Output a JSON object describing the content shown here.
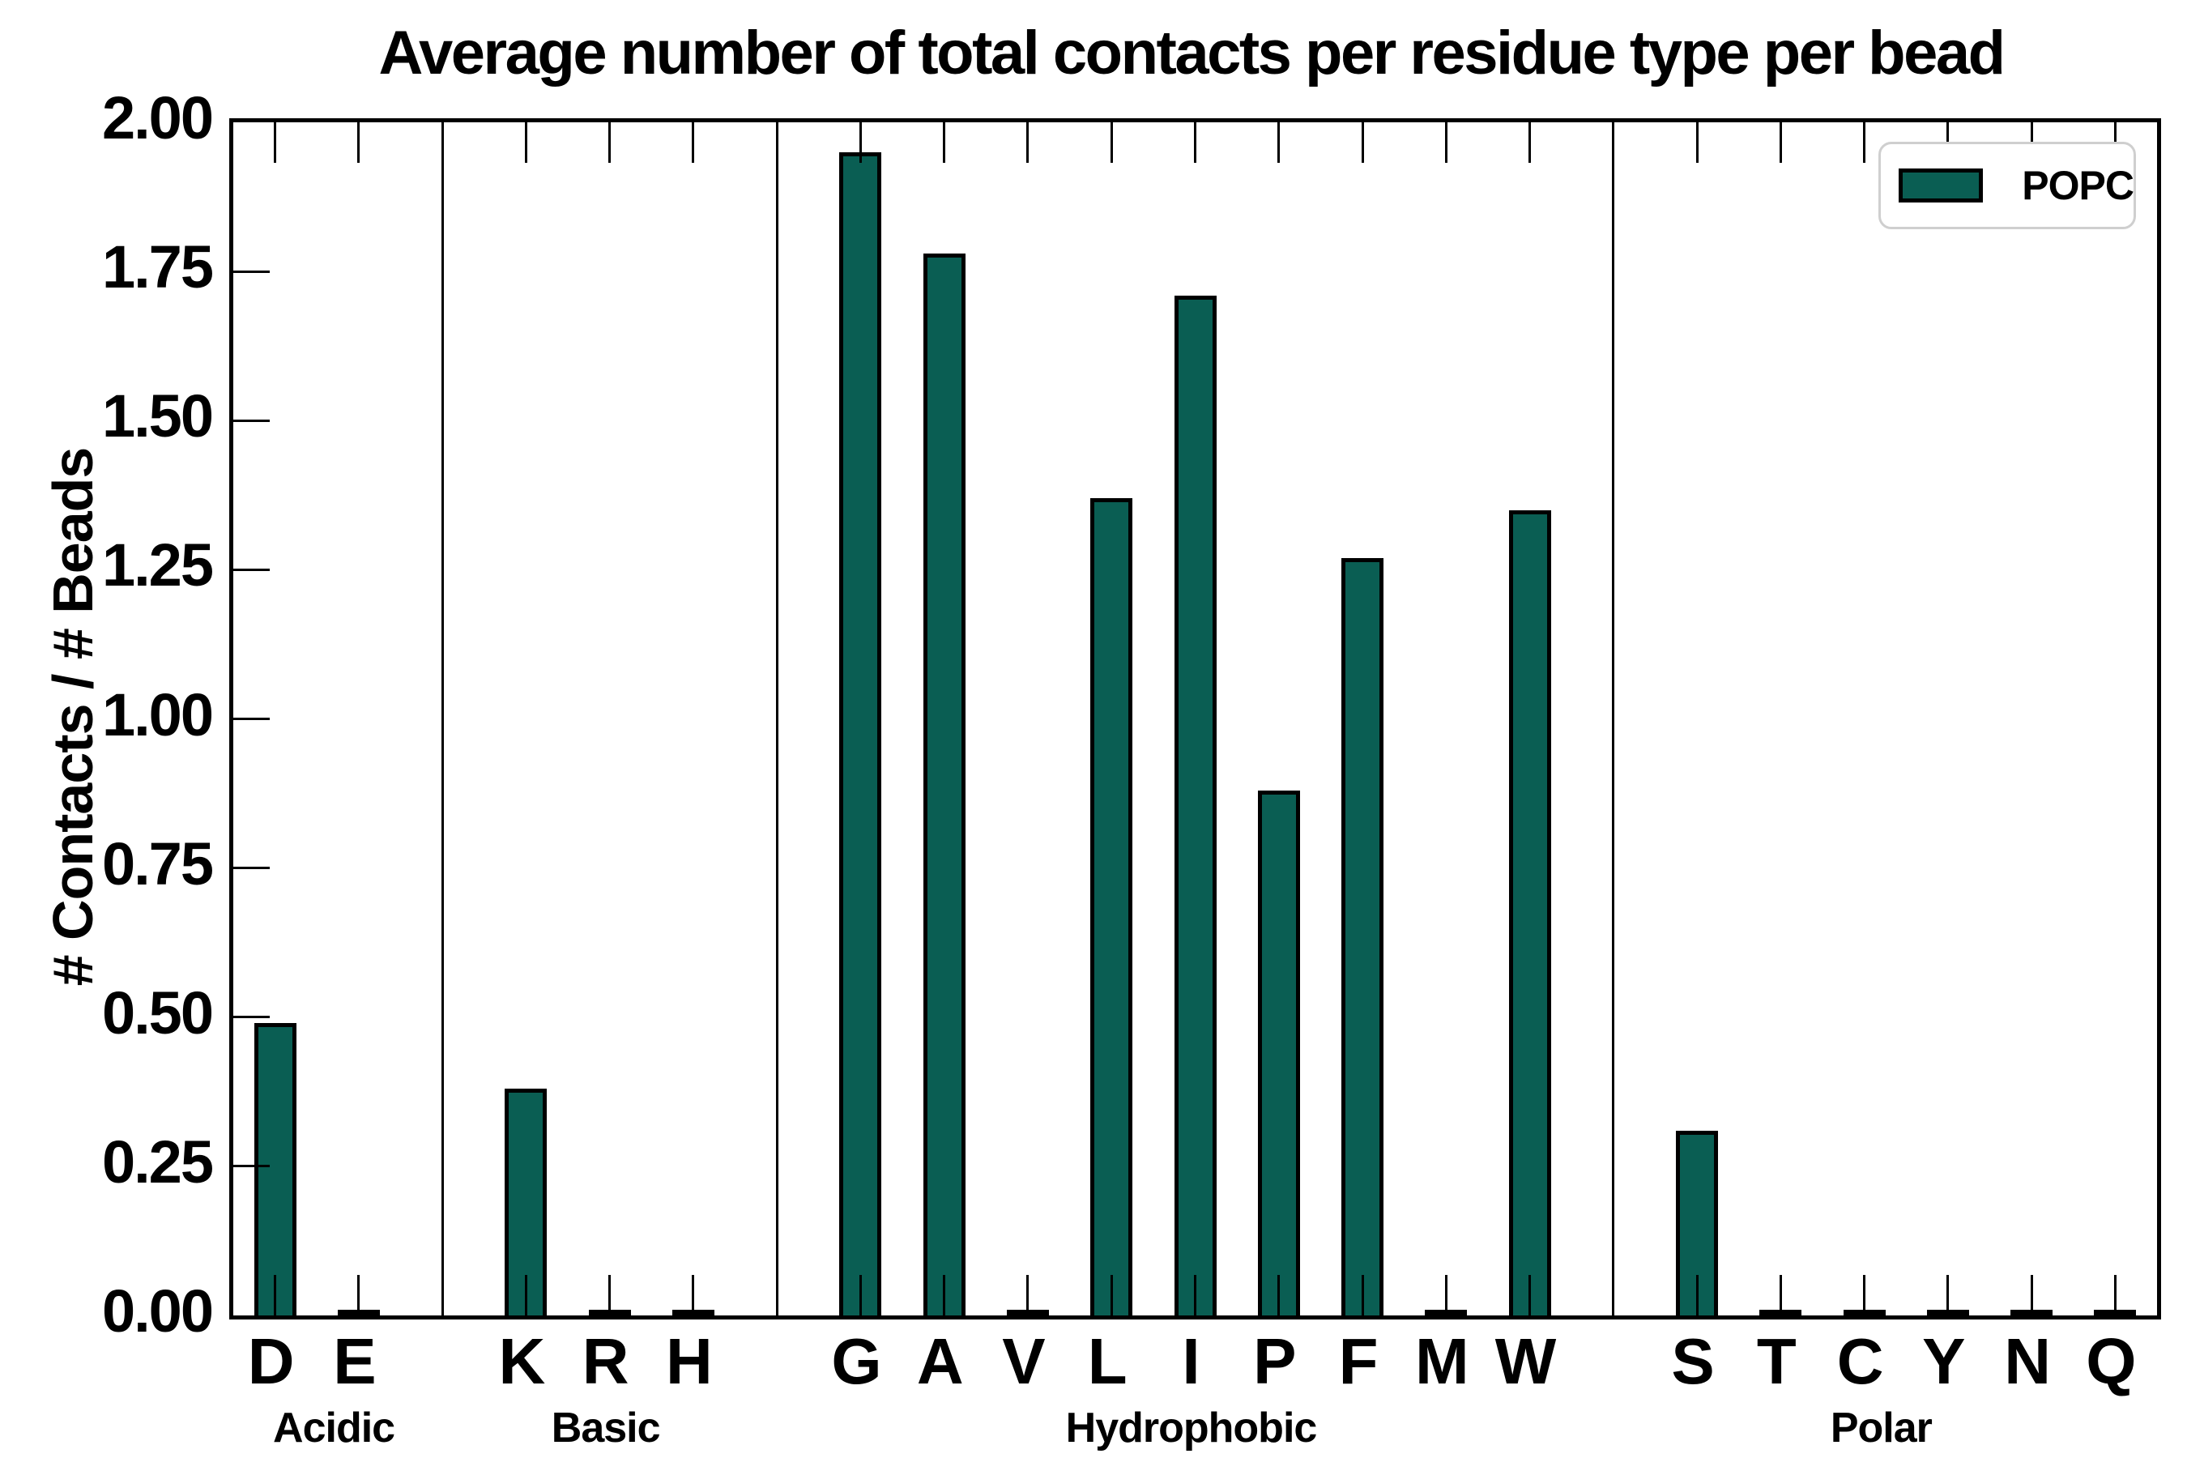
{
  "chart_data": {
    "type": "bar",
    "title": "Average number of total contacts per residue type per bead",
    "xlabel": "",
    "ylabel": "# Contacts / # Beads",
    "ylim": [
      0,
      2
    ],
    "ytick_step": 0.25,
    "ytick_labels": [
      "2.00",
      "1.75",
      "1.50",
      "1.25",
      "1.00",
      "0.75",
      "0.50",
      "0.25",
      "0.00"
    ],
    "grid": false,
    "legend": {
      "label": "POPC",
      "position": "upper-right"
    },
    "bar_color": "#0a5e53",
    "bar_edge_color": "#000000",
    "series": [
      {
        "name": "POPC"
      }
    ],
    "groups": [
      {
        "name": "Acidic",
        "categories": [
          "D",
          "E"
        ],
        "values": [
          0.49,
          0.005
        ]
      },
      {
        "name": "Basic",
        "categories": [
          "K",
          "R",
          "H"
        ],
        "values": [
          0.38,
          0.005,
          0.005
        ]
      },
      {
        "name": "Hydrophobic",
        "categories": [
          "G",
          "A",
          "V",
          "L",
          "I",
          "P",
          "F",
          "M",
          "W"
        ],
        "values": [
          1.95,
          1.78,
          0.005,
          1.37,
          1.71,
          0.88,
          1.27,
          0.005,
          1.35
        ]
      },
      {
        "name": "Polar",
        "categories": [
          "S",
          "T",
          "C",
          "Y",
          "N",
          "Q"
        ],
        "values": [
          0.31,
          0.005,
          0.005,
          0.005,
          0.005,
          0.005
        ]
      }
    ]
  }
}
